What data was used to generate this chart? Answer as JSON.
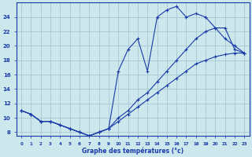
{
  "xlabel": "Graphe des températures (°c)",
  "yticks": [
    8,
    10,
    12,
    14,
    16,
    18,
    20,
    22,
    24
  ],
  "bg_color": "#cce8ec",
  "line_color": "#1a3aaa",
  "grid_color": "#a0c0cc",
  "line1_x": [
    0,
    1,
    2,
    3,
    4,
    5,
    6,
    7,
    8,
    9,
    10,
    11,
    12,
    13,
    14,
    15,
    16,
    17,
    18,
    19,
    20,
    21,
    22,
    23
  ],
  "line1_y": [
    11,
    10.5,
    9.5,
    9.5,
    9,
    8.5,
    8,
    7.5,
    8.0,
    8.5,
    16.5,
    19.5,
    21,
    16.5,
    24,
    25,
    25.5,
    24,
    24.5,
    24,
    22.5,
    21,
    20,
    19
  ],
  "line2_x": [
    0,
    1,
    2,
    3,
    4,
    5,
    6,
    7,
    8,
    9,
    10,
    11,
    12,
    13,
    14,
    15,
    16,
    17,
    18,
    19,
    20,
    21,
    22,
    23
  ],
  "line2_y": [
    11,
    10.5,
    9.5,
    9.5,
    9,
    8.5,
    8,
    7.5,
    8.0,
    8.5,
    10,
    11,
    12.5,
    13.5,
    15,
    16.5,
    18,
    19.5,
    21,
    22,
    22.5,
    22.5,
    19.5,
    19
  ],
  "line3_x": [
    0,
    1,
    2,
    3,
    4,
    5,
    6,
    7,
    8,
    9,
    10,
    11,
    12,
    13,
    14,
    15,
    16,
    17,
    18,
    19,
    20,
    21,
    22,
    23
  ],
  "line3_y": [
    11,
    10.5,
    9.5,
    9.5,
    9,
    8.5,
    8,
    7.5,
    8.0,
    8.5,
    9.5,
    10.5,
    11.5,
    12.5,
    13.5,
    14.5,
    15.5,
    16.5,
    17.5,
    18,
    18.5,
    18.8,
    19.0,
    19.0
  ],
  "xlim": [
    -0.5,
    23.5
  ],
  "ylim": [
    7.5,
    26.0
  ]
}
